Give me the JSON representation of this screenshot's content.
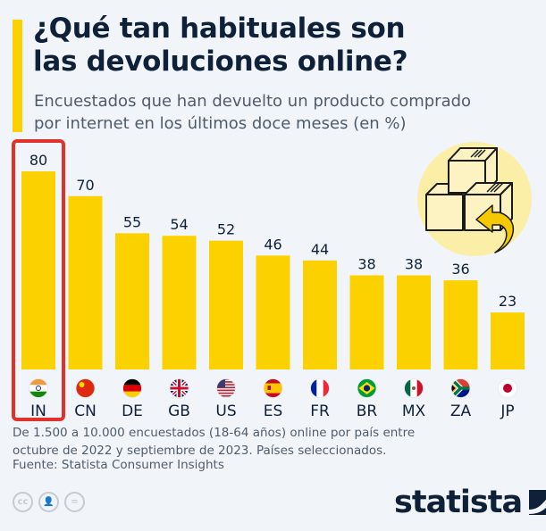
{
  "header": {
    "title_line1": "¿Qué tan habituales son",
    "title_line2": "las devoluciones online?",
    "subtitle_line1": "Encuestados que han devuelto un producto comprado",
    "subtitle_line2": "por internet en los últimos doce meses (en %)"
  },
  "colors": {
    "bar": "#fbd200",
    "highlight": "#e0312b",
    "text": "#0e2139",
    "background": "#f1f5f9"
  },
  "chart_data": {
    "type": "bar",
    "title": "¿Qué tan habituales son las devoluciones online?",
    "subtitle": "Encuestados que han devuelto un producto comprado por internet en los últimos doce meses (en %)",
    "xlabel": "",
    "ylabel": "",
    "categories": [
      "IN",
      "CN",
      "DE",
      "GB",
      "US",
      "ES",
      "FR",
      "BR",
      "MX",
      "ZA",
      "JP"
    ],
    "values": [
      80,
      70,
      55,
      54,
      52,
      46,
      44,
      38,
      38,
      36,
      23
    ],
    "flags": [
      "india-flag-icon",
      "china-flag-icon",
      "germany-flag-icon",
      "uk-flag-icon",
      "usa-flag-icon",
      "spain-flag-icon",
      "france-flag-icon",
      "brazil-flag-icon",
      "mexico-flag-icon",
      "south-africa-flag-icon",
      "japan-flag-icon"
    ],
    "highlighted": "IN",
    "ylim": [
      0,
      80
    ],
    "grid": false,
    "legend": "none",
    "data_labels": true
  },
  "footer": {
    "note_line1": "De 1.500 a 10.000 encuestados (18-64 años) online por país entre",
    "note_line2": "octubre de 2022 y septiembre de 2023. Países seleccionados.",
    "source": "Fuente: Statista Consumer Insights",
    "license_icons": [
      "cc",
      "by",
      "nd"
    ],
    "brand": "statista"
  }
}
